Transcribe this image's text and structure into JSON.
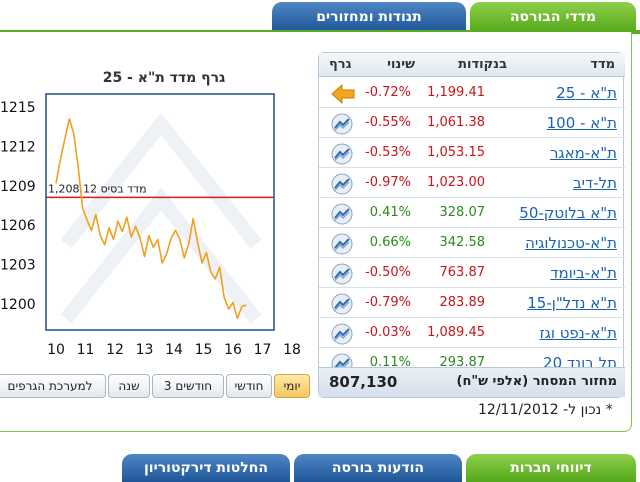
{
  "tabs": {
    "indices": "מדדי הבורסה",
    "movers": "תנודות ומחזורים"
  },
  "chart": {
    "title": "גרף מדד ת\"א - 25",
    "base_label": "מדד בסיס 1,208.12"
  },
  "chart_data": {
    "type": "line",
    "title": "גרף מדד ת\"א - 25",
    "x_ticks": [
      "10",
      "11",
      "12",
      "13",
      "14",
      "15",
      "16",
      "17",
      "18"
    ],
    "y_ticks": [
      "1215",
      "1212",
      "1209",
      "1206",
      "1203",
      "1200"
    ],
    "ylim": [
      1198,
      1216
    ],
    "xlim": [
      10,
      18
    ],
    "baseline": 1208.12,
    "baseline_label": "מדד בסיס 1,208.12",
    "grid": false,
    "series": [
      {
        "x": [
          10.0,
          10.15,
          10.3,
          10.45,
          10.6,
          10.75,
          10.9,
          11.05,
          11.2,
          11.35,
          11.5,
          11.65,
          11.8,
          11.95,
          12.1,
          12.25,
          12.4,
          12.55,
          12.7,
          12.85,
          13.0,
          13.15,
          13.3,
          13.45,
          13.6,
          13.75,
          13.9,
          14.05,
          14.2,
          14.35,
          14.5,
          14.65,
          14.8,
          14.95,
          15.1,
          15.25,
          15.4,
          15.55,
          15.7,
          15.85,
          16.0,
          16.15,
          16.3,
          16.45
        ],
        "y": [
          1209.2,
          1211.0,
          1212.6,
          1214.1,
          1213.0,
          1210.5,
          1207.3,
          1206.4,
          1205.6,
          1206.8,
          1205.2,
          1204.5,
          1205.8,
          1204.9,
          1206.3,
          1205.5,
          1206.6,
          1205.1,
          1205.9,
          1205.0,
          1203.6,
          1205.2,
          1204.3,
          1204.9,
          1203.1,
          1203.8,
          1205.0,
          1205.6,
          1204.9,
          1203.5,
          1204.6,
          1206.5,
          1204.7,
          1203.1,
          1203.9,
          1202.4,
          1201.9,
          1202.8,
          1200.5,
          1199.6,
          1200.1,
          1198.9,
          1199.8,
          1199.9
        ]
      }
    ]
  },
  "periods": [
    {
      "label": "יומי",
      "active": true
    },
    {
      "label": "חודשי",
      "active": false
    },
    {
      "label": "3 חודשים",
      "active": false
    },
    {
      "label": "שנה",
      "active": false
    },
    {
      "label": "למערכת הגרפים",
      "active": false
    }
  ],
  "table": {
    "headers": {
      "name": "מדד",
      "value": "בנקודות",
      "change": "שינוי",
      "graph": "גרף"
    },
    "rows": [
      {
        "name": "ת\"א - 25",
        "value": "1,199.41",
        "change": "-0.72%",
        "dir": "neg",
        "icon": "arrow-left-icon"
      },
      {
        "name": "ת\"א - 100",
        "value": "1,061.38",
        "change": "-0.55%",
        "dir": "neg",
        "icon": "chart-icon"
      },
      {
        "name": "ת\"א-מאגר",
        "value": "1,053.15",
        "change": "-0.53%",
        "dir": "neg",
        "icon": "chart-icon"
      },
      {
        "name": "תל-דיב",
        "value": "1,023.00",
        "change": "-0.97%",
        "dir": "neg",
        "icon": "chart-icon"
      },
      {
        "name": "ת\"א בלוטק-50",
        "value": "328.07",
        "change": "0.41%",
        "dir": "pos",
        "icon": "chart-icon"
      },
      {
        "name": "ת\"א-טכנולוגיה",
        "value": "342.58",
        "change": "0.66%",
        "dir": "pos",
        "icon": "chart-icon"
      },
      {
        "name": "ת\"א-ביומד",
        "value": "763.87",
        "change": "-0.50%",
        "dir": "neg",
        "icon": "chart-icon"
      },
      {
        "name": "ת\"א נדל\"ן-15",
        "value": "283.89",
        "change": "-0.79%",
        "dir": "neg",
        "icon": "chart-icon"
      },
      {
        "name": "ת\"א-נפט וגז",
        "value": "1,089.45",
        "change": "-0.03%",
        "dir": "neg",
        "icon": "chart-icon"
      },
      {
        "name": "תל בונד 20",
        "value": "293.87",
        "change": "0.11%",
        "dir": "pos",
        "icon": "chart-icon"
      }
    ],
    "turnover_label": "מחזור המסחר (אלפי ש\"ח)",
    "turnover_value": "807,130"
  },
  "updated": "* נכון ל- 12/11/2012",
  "bottom_tabs": {
    "company_reports": "דיווחי חברות",
    "tase_messages": "הודעות בורסה",
    "board_decisions": "החלטות דירקטוריון"
  },
  "colors": {
    "negative": "#c8141e",
    "positive": "#2b8a1c",
    "line": "#f0a020",
    "baseline": "#cc1f1f",
    "frame": "#1f4f8a"
  }
}
